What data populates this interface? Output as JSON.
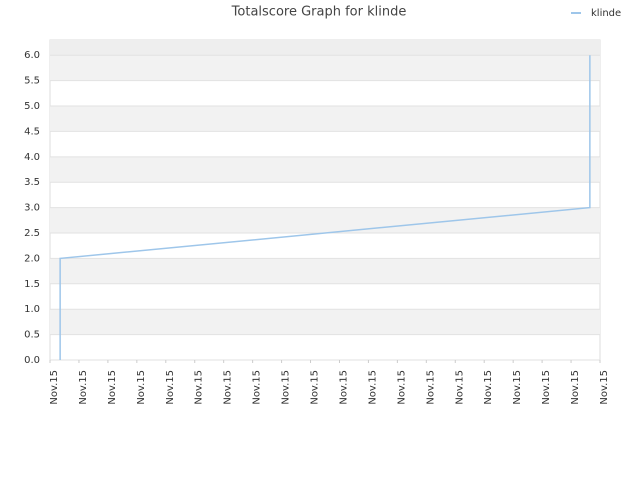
{
  "chart_data": {
    "type": "line",
    "title": "Totalscore Graph for klinde",
    "x": [
      0.35,
      0.35,
      18.65,
      18.65
    ],
    "series": [
      {
        "name": "klinde",
        "color": "#9ec6ea",
        "values": [
          0,
          2,
          3,
          6
        ]
      }
    ],
    "xlim": [
      0,
      19
    ],
    "xticks": [
      {
        "value": 0,
        "label": "Nov.15"
      },
      {
        "value": 1,
        "label": "Nov.15"
      },
      {
        "value": 2,
        "label": "Nov.15"
      },
      {
        "value": 3,
        "label": "Nov.15"
      },
      {
        "value": 4,
        "label": "Nov.15"
      },
      {
        "value": 5,
        "label": "Nov.15"
      },
      {
        "value": 6,
        "label": "Nov.15"
      },
      {
        "value": 7,
        "label": "Nov.15"
      },
      {
        "value": 8,
        "label": "Nov.15"
      },
      {
        "value": 9,
        "label": "Nov.15"
      },
      {
        "value": 10,
        "label": "Nov.15"
      },
      {
        "value": 11,
        "label": "Nov.15"
      },
      {
        "value": 12,
        "label": "Nov.15"
      },
      {
        "value": 13,
        "label": "Nov.15"
      },
      {
        "value": 14,
        "label": "Nov.15"
      },
      {
        "value": 15,
        "label": "Nov.15"
      },
      {
        "value": 16,
        "label": "Nov.15"
      },
      {
        "value": 17,
        "label": "Nov.15"
      },
      {
        "value": 18,
        "label": "Nov.15"
      },
      {
        "value": 19,
        "label": "Nov.15"
      }
    ],
    "ylim": [
      0,
      6.3
    ],
    "yticks": [
      {
        "value": 0,
        "label": "0.0"
      },
      {
        "value": 0.5,
        "label": "0.5"
      },
      {
        "value": 1,
        "label": "1.0"
      },
      {
        "value": 1.5,
        "label": "1.5"
      },
      {
        "value": 2,
        "label": "2.0"
      },
      {
        "value": 2.5,
        "label": "2.5"
      },
      {
        "value": 3,
        "label": "3.0"
      },
      {
        "value": 3.5,
        "label": "3.5"
      },
      {
        "value": 4,
        "label": "4.0"
      },
      {
        "value": 4.5,
        "label": "4.5"
      },
      {
        "value": 5,
        "label": "5.0"
      },
      {
        "value": 5.5,
        "label": "5.5"
      },
      {
        "value": 6,
        "label": "6.0"
      }
    ],
    "grid": true,
    "legend": "top-right"
  }
}
